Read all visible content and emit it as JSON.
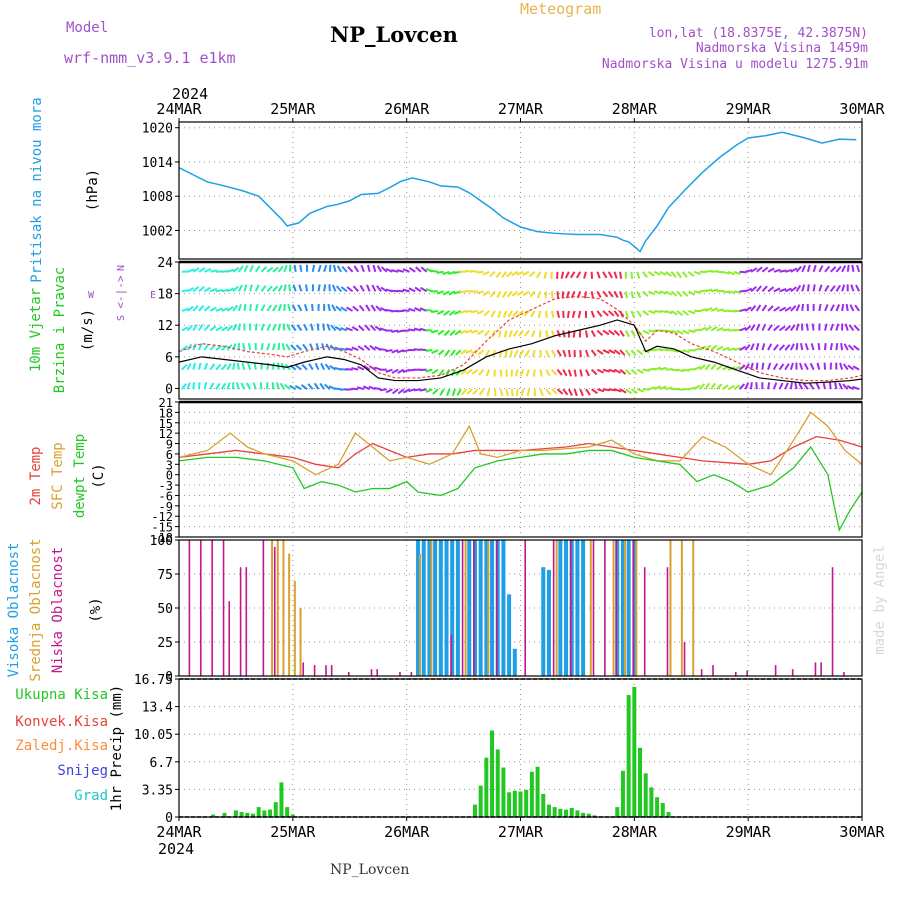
{
  "header": {
    "model_label": "Model",
    "model_name": "wrf-nmm_v3.9.1 e1km",
    "station": "NP_Lovcen",
    "product": "Meteogram",
    "lonlat": "lon,lat (18.8375E, 42.3875N)",
    "altitude": "Nadmorska Visina 1459m",
    "model_altitude": "Nadmorska Visina u modelu 1275.91m",
    "year": "2024",
    "footer_station": "NP_Lovcen",
    "credit": "made by Angel"
  },
  "colors": {
    "pressure": "#1e9fe6",
    "temp2m": "#e8423c",
    "sfctemp": "#d9a030",
    "dewpt": "#22c822",
    "high_cloud": "#1e9fe6",
    "mid_cloud": "#d9a030",
    "low_cloud": "#c01890",
    "precip_total": "#22c822",
    "precip_conv": "#e8423c",
    "precip_frz": "#ff8c3c",
    "snow": "#4040e0",
    "hail": "#20c8c8",
    "wind_speed": "#000000",
    "wind_gust": "#e8423c",
    "model_text": "#a050c8",
    "meteogram_text": "#e8b450"
  },
  "x_axis": {
    "ticks": [
      "24MAR",
      "25MAR",
      "26MAR",
      "27MAR",
      "28MAR",
      "29MAR",
      "30MAR"
    ],
    "days": [
      0,
      1,
      2,
      3,
      4,
      5,
      6
    ],
    "range": [
      0,
      6
    ]
  },
  "panels": {
    "pressure": {
      "ylabel1": "Pritisak na nivou mora",
      "ylabel2": "(hPa)"
    },
    "wind": {
      "ylabel1": "10m Vjetar",
      "ylabel2": "Brzina i Pravac",
      "ylabel3": "(m/s)",
      "compass": {
        "n": "N",
        "s": "S",
        "w": "W",
        "e": "E",
        "arrows": "<-|->"
      }
    },
    "temp": {
      "label_2m": "2m Temp",
      "label_sfc": "SFC Temp",
      "label_dew": "dewpt Temp",
      "unit": "(C)"
    },
    "cloud": {
      "label_high": "Visoka Oblacnost",
      "label_mid": "Srednja Oblacnost",
      "label_low": "Niska Oblacnost",
      "unit": "(%)"
    },
    "precip": {
      "label_total": "Ukupna Kisa",
      "label_conv": "Konvek.Kisa",
      "label_frz": "Zaledj.Kisa",
      "label_snow": "Snijeg",
      "label_hail": "Grad",
      "unit": "1hr Precip (mm)"
    }
  },
  "chart_data": [
    {
      "type": "line",
      "title": "",
      "ylabel": "Pritisak na nivou mora (hPa)",
      "ylim": [
        997,
        1021
      ],
      "yticks": [
        1002,
        1008,
        1014,
        1020
      ],
      "grid": true,
      "series": [
        {
          "name": "Pritisak na nivou mora",
          "x": [
            0,
            0.1,
            0.25,
            0.4,
            0.55,
            0.7,
            0.8,
            0.9,
            0.95,
            1.05,
            1.15,
            1.3,
            1.4,
            1.5,
            1.6,
            1.75,
            1.85,
            1.95,
            2.05,
            2.2,
            2.3,
            2.45,
            2.55,
            2.65,
            2.75,
            2.85,
            3.0,
            3.15,
            3.3,
            3.5,
            3.7,
            3.85,
            3.9,
            3.95,
            4.0,
            4.05,
            4.1,
            4.2,
            4.3,
            4.45,
            4.6,
            4.75,
            4.9,
            5.0,
            5.15,
            5.3,
            5.5,
            5.65,
            5.8,
            5.95
          ],
          "values": [
            1013,
            1012,
            1010.5,
            1009.8,
            1009,
            1008,
            1006,
            1004,
            1002.8,
            1003.3,
            1005,
            1006.2,
            1006.6,
            1007.2,
            1008.3,
            1008.5,
            1009.5,
            1010.6,
            1011.2,
            1010.5,
            1009.8,
            1009.6,
            1008.6,
            1007.2,
            1005.8,
            1004.2,
            1002.6,
            1001.8,
            1001.5,
            1001.3,
            1001.3,
            1000.8,
            1000.3,
            1000.0,
            999.2,
            998.3,
            1000.2,
            1002.8,
            1006.0,
            1009.2,
            1012.2,
            1014.8,
            1017.0,
            1018.2,
            1018.6,
            1019.2,
            1018.2,
            1017.3,
            1018.0,
            1017.9
          ]
        }
      ]
    },
    {
      "type": "line",
      "title": "",
      "ylabel": "10m Vjetar Brzina i Pravac (m/s)",
      "ylim": [
        -2,
        24
      ],
      "yticks": [
        0,
        6,
        12,
        18,
        24
      ],
      "grid": true,
      "series": [
        {
          "name": "speed",
          "x": [
            0,
            0.2,
            0.4,
            0.6,
            0.8,
            0.95,
            1.1,
            1.3,
            1.45,
            1.6,
            1.75,
            1.9,
            2.1,
            2.3,
            2.5,
            2.7,
            2.9,
            3.1,
            3.3,
            3.5,
            3.7,
            3.85,
            4.0,
            4.1,
            4.2,
            4.35,
            4.5,
            4.7,
            4.9,
            5.1,
            5.3,
            5.5,
            5.7,
            5.9,
            6.0
          ],
          "values": [
            5,
            6,
            5.5,
            5,
            4.5,
            4,
            5,
            6,
            5.5,
            4.5,
            2,
            1.5,
            1.5,
            2,
            3.5,
            6,
            7.5,
            8.5,
            10,
            11,
            12,
            13,
            12,
            7,
            8,
            7.5,
            6,
            5,
            3.5,
            2,
            1.5,
            1,
            1.2,
            1.5,
            1.8
          ]
        },
        {
          "name": "gust",
          "x": [
            0,
            0.2,
            0.4,
            0.6,
            0.8,
            0.95,
            1.1,
            1.3,
            1.45,
            1.6,
            1.75,
            1.9,
            2.1,
            2.3,
            2.5,
            2.7,
            2.9,
            3.1,
            3.3,
            3.5,
            3.7,
            3.85,
            4.0,
            4.1,
            4.2,
            4.35,
            4.5,
            4.7,
            4.9,
            5.1,
            5.3,
            5.5,
            5.7,
            5.9,
            6.0
          ],
          "values": [
            7,
            8.5,
            8,
            7,
            6.5,
            6,
            7,
            8,
            7,
            5.5,
            3,
            2,
            2,
            2.5,
            4.5,
            9,
            13,
            15,
            17,
            17.5,
            17,
            15,
            12,
            9,
            11,
            10.5,
            8.5,
            7,
            5,
            3,
            2,
            1.5,
            1.5,
            2,
            2.5
          ]
        }
      ]
    },
    {
      "type": "line",
      "title": "",
      "ylabel": "Temp (C)",
      "ylim": [
        -18,
        21
      ],
      "yticks": [
        -18,
        -15,
        -12,
        -9,
        -6,
        -3,
        0,
        3,
        6,
        9,
        12,
        15,
        18,
        21
      ],
      "grid": true,
      "series": [
        {
          "name": "2m Temp",
          "x": [
            0,
            0.25,
            0.5,
            0.75,
            1.0,
            1.2,
            1.4,
            1.55,
            1.7,
            1.85,
            2.0,
            2.2,
            2.4,
            2.6,
            2.8,
            3.0,
            3.2,
            3.4,
            3.6,
            3.8,
            4.0,
            4.2,
            4.4,
            4.6,
            4.8,
            5.0,
            5.2,
            5.4,
            5.6,
            5.8,
            6.0
          ],
          "values": [
            5,
            6,
            7,
            6,
            5,
            3,
            2,
            6,
            9,
            7,
            5,
            6,
            6,
            7,
            7,
            7,
            7.5,
            8,
            9,
            8,
            7,
            6,
            5,
            4,
            3.5,
            3,
            4,
            8,
            11,
            10,
            8
          ]
        },
        {
          "name": "SFC Temp",
          "x": [
            0,
            0.25,
            0.45,
            0.6,
            0.75,
            1.0,
            1.2,
            1.4,
            1.55,
            1.7,
            1.85,
            2.0,
            2.2,
            2.4,
            2.55,
            2.65,
            2.8,
            3.0,
            3.2,
            3.4,
            3.6,
            3.8,
            4.0,
            4.2,
            4.4,
            4.6,
            4.8,
            5.0,
            5.2,
            5.4,
            5.55,
            5.7,
            5.85,
            6.0
          ],
          "values": [
            5,
            7,
            12,
            8,
            6,
            4,
            0,
            3,
            12,
            8,
            4,
            5,
            3,
            6,
            14,
            6,
            5,
            7,
            7,
            7.5,
            8,
            10,
            6,
            4,
            4,
            11,
            8,
            3,
            0,
            10,
            18,
            14,
            7,
            3
          ]
        },
        {
          "name": "dewpt Temp",
          "x": [
            0,
            0.25,
            0.5,
            0.75,
            1.0,
            1.1,
            1.25,
            1.4,
            1.55,
            1.7,
            1.85,
            2.0,
            2.1,
            2.3,
            2.45,
            2.6,
            2.8,
            3.0,
            3.2,
            3.4,
            3.6,
            3.8,
            4.0,
            4.2,
            4.4,
            4.55,
            4.7,
            4.85,
            5.0,
            5.2,
            5.4,
            5.55,
            5.7,
            5.8,
            5.9,
            6.0
          ],
          "values": [
            4,
            5,
            5,
            4,
            2,
            -4,
            -2,
            -3,
            -5,
            -4,
            -4,
            -2,
            -5,
            -6,
            -4,
            2,
            4,
            5,
            6,
            6,
            7,
            7,
            5,
            4,
            3,
            -2,
            0,
            -2,
            -5,
            -3,
            2,
            8,
            0,
            -16,
            -10,
            -5
          ]
        }
      ]
    },
    {
      "type": "bar",
      "title": "",
      "ylabel": "Oblacnost (%)",
      "ylim": [
        0,
        100
      ],
      "yticks": [
        0,
        25,
        50,
        75,
        100
      ],
      "grid": true,
      "series": [
        {
          "name": "Visoka Oblacnost",
          "x": [
            2.1,
            2.15,
            2.2,
            2.25,
            2.3,
            2.35,
            2.4,
            2.45,
            2.55,
            2.6,
            2.65,
            2.7,
            2.75,
            2.8,
            2.85,
            2.9,
            2.95,
            3.2,
            3.25,
            3.35,
            3.4,
            3.45,
            3.5,
            3.55,
            3.85,
            3.9,
            3.95,
            4.0
          ],
          "values": [
            100,
            100,
            100,
            100,
            100,
            100,
            100,
            100,
            100,
            100,
            100,
            100,
            100,
            100,
            100,
            60,
            20,
            80,
            78,
            100,
            100,
            100,
            100,
            100,
            100,
            100,
            100,
            100
          ]
        },
        {
          "name": "Srednja Oblacnost",
          "x": [
            0.8,
            0.85,
            0.9,
            0.95,
            1.0,
            1.05,
            2.1,
            2.2,
            2.5,
            2.7,
            3.3,
            3.6,
            3.8,
            3.9,
            4.0,
            4.3,
            4.4,
            4.5
          ],
          "values": [
            100,
            100,
            100,
            90,
            70,
            50,
            90,
            100,
            100,
            100,
            100,
            100,
            100,
            100,
            100,
            100,
            100,
            100
          ]
        },
        {
          "name": "Niska Oblacnost",
          "x": [
            0.1,
            0.2,
            0.3,
            0.4,
            0.45,
            0.55,
            0.6,
            0.75,
            0.85,
            1.1,
            1.2,
            1.3,
            1.35,
            1.5,
            1.7,
            1.75,
            1.95,
            2.05,
            2.4,
            2.5,
            2.6,
            2.8,
            3.05,
            3.3,
            3.45,
            3.65,
            3.75,
            3.85,
            4.0,
            4.1,
            4.3,
            4.45,
            4.6,
            4.7,
            4.9,
            5.0,
            5.25,
            5.4,
            5.6,
            5.65,
            5.75,
            5.85
          ],
          "values": [
            100,
            100,
            100,
            100,
            55,
            80,
            80,
            100,
            95,
            10,
            8,
            8,
            8,
            3,
            5,
            5,
            3,
            3,
            30,
            100,
            100,
            100,
            100,
            100,
            100,
            100,
            100,
            100,
            100,
            80,
            80,
            25,
            5,
            8,
            3,
            4,
            8,
            5,
            10,
            10,
            80,
            3
          ]
        }
      ]
    },
    {
      "type": "bar",
      "title": "",
      "ylabel": "1hr Precip (mm)",
      "ylim": [
        0,
        16.75
      ],
      "yticks": [
        0,
        3.35,
        6.7,
        10.05,
        13.4,
        16.75
      ],
      "grid": true,
      "series": [
        {
          "name": "Ukupna Kisa",
          "x": [
            0.3,
            0.4,
            0.5,
            0.55,
            0.6,
            0.65,
            0.7,
            0.75,
            0.8,
            0.85,
            0.9,
            0.95,
            1.0,
            2.6,
            2.65,
            2.7,
            2.75,
            2.8,
            2.85,
            2.9,
            2.95,
            3.0,
            3.05,
            3.1,
            3.15,
            3.2,
            3.25,
            3.3,
            3.35,
            3.4,
            3.45,
            3.5,
            3.55,
            3.6,
            3.65,
            3.85,
            3.9,
            3.95,
            4.0,
            4.05,
            4.1,
            4.15,
            4.2,
            4.25,
            4.3
          ],
          "values": [
            0.3,
            0.5,
            0.8,
            0.6,
            0.5,
            0.4,
            1.2,
            0.8,
            0.9,
            1.8,
            4.2,
            1.2,
            0.3,
            1.5,
            3.8,
            7.2,
            10.5,
            8.2,
            6.0,
            3.0,
            3.2,
            3.1,
            3.3,
            5.5,
            6.1,
            2.8,
            1.5,
            1.2,
            1.0,
            0.9,
            1.1,
            0.8,
            0.5,
            0.4,
            0.2,
            1.2,
            5.6,
            14.8,
            15.8,
            8.4,
            5.3,
            3.6,
            2.4,
            1.7,
            0.6
          ]
        }
      ]
    }
  ]
}
